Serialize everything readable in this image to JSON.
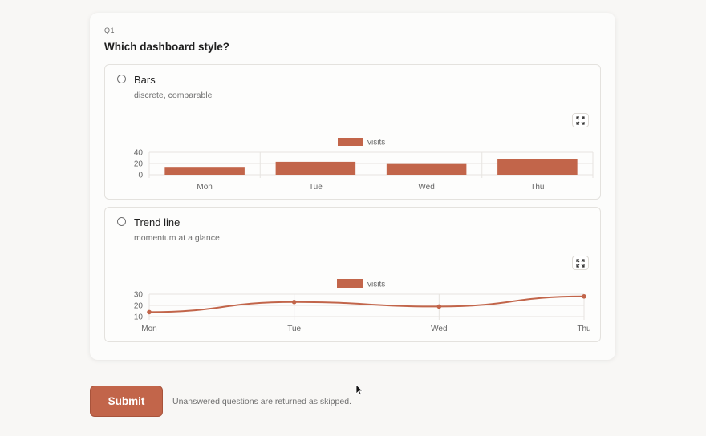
{
  "question": {
    "number": "Q1",
    "title": "Which dashboard style?"
  },
  "options": [
    {
      "label": "Bars",
      "description": "discrete, comparable",
      "selected": false,
      "expand_icon": "expand-icon"
    },
    {
      "label": "Trend line",
      "description": "momentum at a glance",
      "selected": false,
      "expand_icon": "expand-icon"
    }
  ],
  "chart_data": [
    {
      "type": "bar",
      "categories": [
        "Mon",
        "Tue",
        "Wed",
        "Thu"
      ],
      "series": [
        {
          "name": "visits",
          "values": [
            14,
            23,
            19,
            28
          ]
        }
      ],
      "yticks": [
        "0",
        "20",
        "40"
      ],
      "ylim": [
        0,
        40
      ],
      "color": "#c2654a",
      "grid": true,
      "legend": "top-center"
    },
    {
      "type": "line",
      "categories": [
        "Mon",
        "Tue",
        "Wed",
        "Thu"
      ],
      "series": [
        {
          "name": "visits",
          "values": [
            14,
            23,
            19,
            28
          ]
        }
      ],
      "yticks": [
        "10",
        "20",
        "30"
      ],
      "ylim": [
        10,
        30
      ],
      "color": "#c2654a",
      "grid": true,
      "legend": "top-center"
    }
  ],
  "footer": {
    "submit_label": "Submit",
    "note": "Unanswered questions are returned as skipped."
  }
}
